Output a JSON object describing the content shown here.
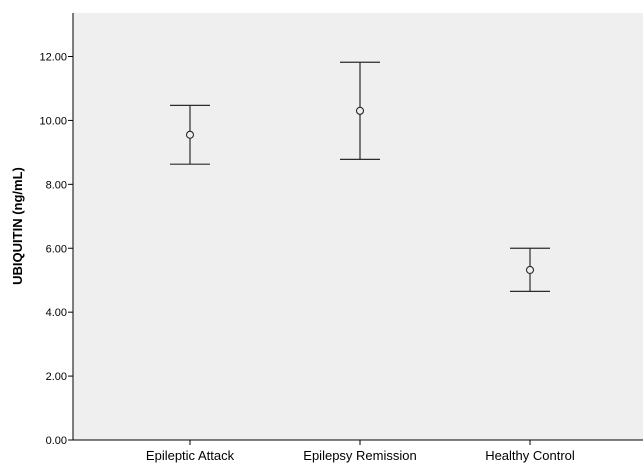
{
  "colors": {
    "plot_background": "#efefef",
    "axis": "#000000",
    "marks": "#2b2b2b"
  },
  "chart_data": {
    "type": "scatter",
    "variant": "error-bar",
    "title": "",
    "xlabel": "",
    "ylabel": "UBIQUITIN (ng/mL)",
    "categories": [
      "Epileptic Attack",
      "Epilepsy Remission",
      "Healthy Control"
    ],
    "points": [
      {
        "category": "Epileptic Attack",
        "mean": 9.55,
        "lower": 8.63,
        "upper": 10.47
      },
      {
        "category": "Epilepsy Remission",
        "mean": 10.3,
        "lower": 8.78,
        "upper": 11.82
      },
      {
        "category": "Healthy Control",
        "mean": 5.32,
        "lower": 4.65,
        "upper": 6.0
      }
    ],
    "ylim": [
      0,
      13.5
    ],
    "yticks": [
      0,
      2,
      4,
      6,
      8,
      10,
      12
    ],
    "ytick_labels": [
      "0.00",
      "2.00",
      "4.00",
      "6.00",
      "8.00",
      "10.00",
      "12.00"
    ],
    "grid": false,
    "legend": "none",
    "marker": "open-circle"
  }
}
